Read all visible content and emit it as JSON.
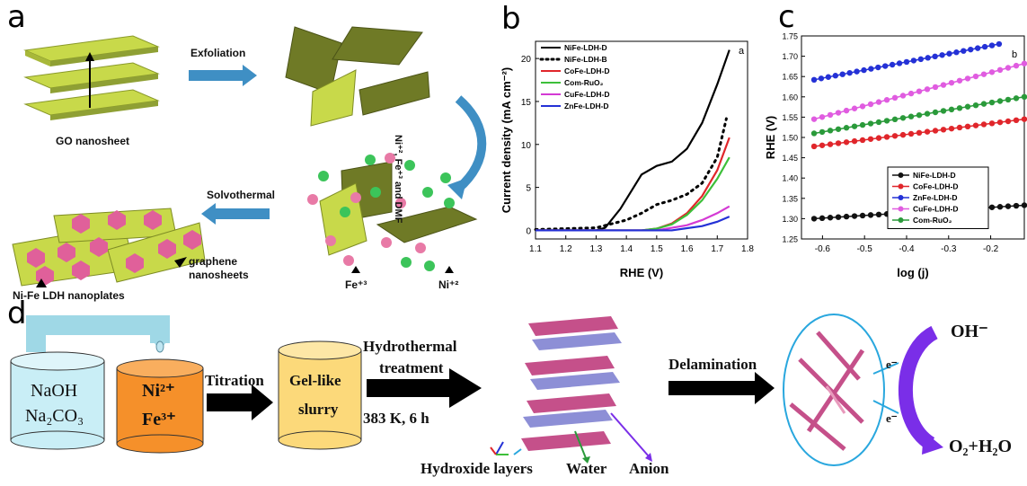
{
  "panel_a": {
    "label": "a",
    "step_exfoliation": "Exfoliation",
    "step_ions": "Ni⁺², Fe⁺³ and DMF",
    "step_solvothermal": "Solvothermal",
    "go_label": "GO nanosheet",
    "ldh_label": "Ni-Fe LDH nanoplates",
    "graphene_label_1": "graphene",
    "graphene_label_2": "nanosheets",
    "fe_label": "Fe⁺³",
    "ni_label": "Ni⁺²",
    "colors": {
      "sheet": "#c8d94a",
      "sheet_dark": "#6f7a26",
      "hex": "#e0609a",
      "fe_ball": "#e87aa6",
      "ni_ball": "#3cc45a",
      "arrow": "#3f8fc4"
    }
  },
  "panel_b": {
    "label": "b",
    "corner": "a",
    "chart_data": {
      "type": "line",
      "title": "",
      "xlabel": "RHE (V)",
      "ylabel": "Current density (mA cm⁻²)",
      "xlim": [
        1.1,
        1.8
      ],
      "ylim": [
        -1,
        22
      ],
      "xticks": [
        "1.1",
        "1.2",
        "1.3",
        "1.4",
        "1.5",
        "1.6",
        "1.7",
        "1.8"
      ],
      "yticks": [
        "0",
        "5",
        "10",
        "15",
        "20"
      ],
      "legend_position": "top-left",
      "series": [
        {
          "name": "NiFe-LDH-D",
          "color": "#000000",
          "style": "solid",
          "x": [
            1.1,
            1.3,
            1.33,
            1.38,
            1.45,
            1.5,
            1.55,
            1.6,
            1.65,
            1.7,
            1.74
          ],
          "y": [
            0,
            0,
            0.3,
            2.5,
            6.5,
            7.5,
            8,
            9.5,
            12.5,
            17,
            21
          ]
        },
        {
          "name": "NiFe-LDH-B",
          "color": "#000000",
          "style": "dotted",
          "x": [
            1.1,
            1.3,
            1.4,
            1.45,
            1.5,
            1.55,
            1.6,
            1.65,
            1.7,
            1.73
          ],
          "y": [
            0.1,
            0.3,
            1.2,
            2,
            3,
            3.5,
            4.2,
            5.5,
            8.5,
            13
          ]
        },
        {
          "name": "CoFe-LDH-D",
          "color": "#e0262b",
          "style": "solid",
          "x": [
            1.1,
            1.45,
            1.5,
            1.55,
            1.6,
            1.65,
            1.7,
            1.74
          ],
          "y": [
            0,
            0,
            0.2,
            0.8,
            2,
            4,
            7,
            10.8
          ]
        },
        {
          "name": "Com-RuO₂",
          "color": "#3dbf3a",
          "style": "solid",
          "x": [
            1.1,
            1.45,
            1.5,
            1.55,
            1.6,
            1.65,
            1.7,
            1.74
          ],
          "y": [
            0,
            0,
            0.2,
            0.7,
            1.8,
            3.5,
            6,
            8.5
          ]
        },
        {
          "name": "CuFe-LDH-D",
          "color": "#d43ad4",
          "style": "solid",
          "x": [
            1.1,
            1.5,
            1.6,
            1.65,
            1.7,
            1.74
          ],
          "y": [
            0,
            0,
            0.6,
            1.2,
            2,
            2.8
          ]
        },
        {
          "name": "ZnFe-LDH-D",
          "color": "#2431d6",
          "style": "solid",
          "x": [
            1.1,
            1.55,
            1.65,
            1.7,
            1.74
          ],
          "y": [
            0,
            0,
            0.5,
            1,
            1.6
          ]
        }
      ]
    }
  },
  "panel_c": {
    "label": "c",
    "corner": "b",
    "chart_data": {
      "type": "scatter",
      "title": "",
      "xlabel": "log (j)",
      "ylabel": "RHE (V)",
      "xlim": [
        -0.65,
        -0.12
      ],
      "ylim": [
        1.25,
        1.75
      ],
      "xticks": [
        "-0.6",
        "-0.5",
        "-0.4",
        "-0.3",
        "-0.2"
      ],
      "yticks": [
        "1.25",
        "1.30",
        "1.35",
        "1.40",
        "1.45",
        "1.50",
        "1.55",
        "1.60",
        "1.65",
        "1.70",
        "1.75"
      ],
      "legend_position": "bottom-right",
      "series": [
        {
          "name": "NiFe-LDH-D",
          "color": "#111111",
          "x": [
            -0.62,
            -0.12
          ],
          "y": [
            1.3,
            1.333
          ]
        },
        {
          "name": "CoFe-LDH-D",
          "color": "#e0262b",
          "x": [
            -0.62,
            -0.12
          ],
          "y": [
            1.478,
            1.545
          ]
        },
        {
          "name": "ZnFe-LDH-D",
          "color": "#2431d6",
          "x": [
            -0.62,
            -0.18
          ],
          "y": [
            1.642,
            1.73
          ]
        },
        {
          "name": "CuFe-LDH-D",
          "color": "#e05ce0",
          "x": [
            -0.62,
            -0.12
          ],
          "y": [
            1.545,
            1.682
          ]
        },
        {
          "name": "Com-RuO₂",
          "color": "#2a9a3a",
          "x": [
            -0.62,
            -0.12
          ],
          "y": [
            1.51,
            1.6
          ]
        }
      ]
    }
  },
  "panel_d": {
    "label": "d",
    "tank1_line1": "NaOH",
    "tank1_line2": "Na₂CO₃",
    "tank2_line1": "Ni²⁺",
    "tank2_line2": "Fe³⁺",
    "titration": "Titration",
    "slurry_line1": "Gel-like",
    "slurry_line2": "slurry",
    "hydro_line1": "Hydrothermal",
    "hydro_line2": "treatment",
    "hydro_cond": "383 K, 6 h",
    "delamination": "Delamination",
    "hydroxide_layers": "Hydroxide layers",
    "water": "Water",
    "anion": "Anion",
    "oh": "OH⁻",
    "product": "O₂+H₂O",
    "electron": "e⁻",
    "colors": {
      "tank1": "#c9eef6",
      "tank2": "#f5902a",
      "slurry": "#fcd97a",
      "big_arrow": "#7a2ee8",
      "ellipse": "#29a7de"
    }
  }
}
